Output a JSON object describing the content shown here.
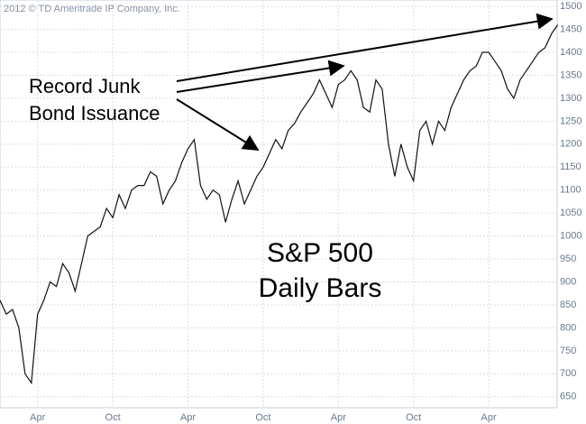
{
  "chart_data": {
    "type": "line",
    "copyright": "2012 © TD Ameritrade IP Company, Inc.",
    "annotation": [
      "Record Junk",
      "Bond Issuance"
    ],
    "title": [
      "S&P 500",
      "Daily Bars"
    ],
    "categories": [
      null,
      null,
      null,
      null,
      null,
      null,
      "Apr",
      null,
      null,
      null,
      null,
      null,
      null,
      null,
      null,
      null,
      null,
      null,
      "Oct",
      null,
      null,
      null,
      null,
      null,
      null,
      null,
      null,
      null,
      null,
      null,
      "Apr",
      null,
      null,
      null,
      null,
      null,
      null,
      null,
      null,
      null,
      null,
      null,
      "Oct",
      null,
      null,
      null,
      null,
      null,
      null,
      null,
      null,
      null,
      null,
      null,
      "Apr",
      null,
      null,
      null,
      null,
      null,
      null,
      null,
      null,
      null,
      null,
      null,
      "Oct",
      null,
      null,
      null,
      null,
      null,
      null,
      null,
      null,
      null,
      null,
      null,
      "Apr",
      null,
      null,
      null,
      null,
      null,
      null,
      null,
      null,
      null,
      null,
      null
    ],
    "series": [
      {
        "name": "S&P 500",
        "color": "#111111",
        "values": [
          860,
          830,
          840,
          800,
          700,
          680,
          830,
          860,
          900,
          890,
          940,
          920,
          880,
          940,
          1000,
          1010,
          1020,
          1060,
          1040,
          1090,
          1060,
          1100,
          1110,
          1110,
          1140,
          1130,
          1070,
          1100,
          1120,
          1160,
          1190,
          1210,
          1110,
          1080,
          1100,
          1090,
          1030,
          1080,
          1120,
          1070,
          1100,
          1130,
          1150,
          1180,
          1210,
          1190,
          1230,
          1245,
          1270,
          1290,
          1310,
          1340,
          1310,
          1280,
          1330,
          1340,
          1360,
          1340,
          1280,
          1270,
          1340,
          1320,
          1200,
          1130,
          1200,
          1150,
          1120,
          1230,
          1250,
          1200,
          1250,
          1230,
          1280,
          1310,
          1340,
          1360,
          1370,
          1400,
          1400,
          1380,
          1360,
          1320,
          1300,
          1340,
          1360,
          1380,
          1400,
          1410,
          1440,
          1460
        ]
      }
    ],
    "ylim": [
      626,
      1514
    ],
    "yticks": [
      650,
      700,
      750,
      800,
      850,
      900,
      950,
      1000,
      1050,
      1100,
      1150,
      1200,
      1250,
      1300,
      1350,
      1400,
      1450,
      1500
    ],
    "grid": true
  }
}
